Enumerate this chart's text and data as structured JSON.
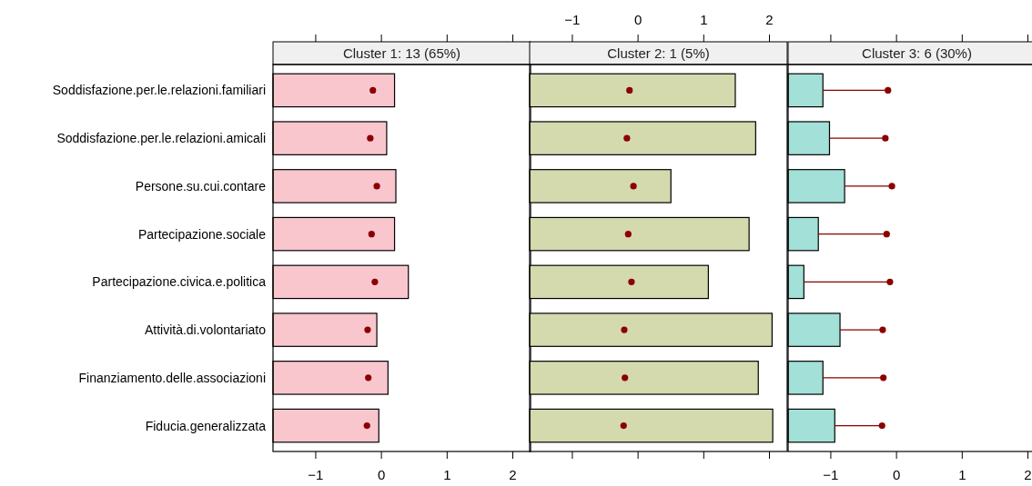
{
  "chart_data": [
    {
      "type": "bar",
      "orientation": "horizontal",
      "title": "Cluster 1: 13 (65%)",
      "categories": [
        "Soddisfazione.per.le.relazioni.familiari",
        "Soddisfazione.per.le.relazioni.amicali",
        "Persone.su.cui.contare",
        "Partecipazione.sociale",
        "Partecipazione.civica.e.politica",
        "Attività.di.volontariato",
        "Finanziamento.delle.associazioni",
        "Fiducia.generalizzata"
      ],
      "series": [
        {
          "color": "#f9c6ce",
          "base": [
            -1.65,
            -1.65,
            -1.65,
            -1.65,
            -1.65,
            -1.65,
            -1.65,
            -1.65
          ],
          "values": [
            1.85,
            1.73,
            1.87,
            1.85,
            2.06,
            1.58,
            1.75,
            1.61
          ]
        },
        {
          "type": "scatter",
          "color": "#8b0000",
          "x": [
            "Soddisfazione.per.le.relazioni.familiari",
            "Soddisfazione.per.le.relazioni.amicali",
            "Persone.su.cui.contare",
            "Partecipazione.sociale",
            "Partecipazione.civica.e.politica",
            "Attività.di.volontariato",
            "Finanziamento.delle.associazioni",
            "Fiducia.generalizzata"
          ],
          "values": [
            -0.13,
            -0.17,
            -0.07,
            -0.15,
            -0.1,
            -0.21,
            -0.2,
            -0.22
          ]
        }
      ],
      "xlim": [
        -1.65,
        2.27
      ],
      "xticks": [
        -1,
        0,
        1,
        2
      ],
      "marker": "circle"
    },
    {
      "type": "bar",
      "orientation": "horizontal",
      "title": "Cluster 2: 1 (5%)",
      "tick_labels": "x",
      "categories": [
        "Soddisfazione.per.le.relazioni.familiari",
        "Soddisfazione.per.le.relazioni.amicali",
        "Persone.su.cui.contare",
        "Partecipazione.sociale",
        "Partecipazione.civica.e.politica",
        "Attività.di.volontariato",
        "Finanziamento.delle.associazioni",
        "Fiducia.generalizzata"
      ],
      "series": [
        {
          "axis": "x2",
          "color": "#d5d9ae",
          "base": [
            -1.65,
            -1.65,
            -1.65,
            -1.65,
            -1.65,
            -1.65,
            -1.65,
            -1.65
          ],
          "values": [
            3.13,
            3.44,
            2.15,
            3.34,
            2.72,
            3.69,
            3.48,
            3.7
          ]
        },
        {
          "type": "scatter",
          "axis": "x2",
          "color": "#8b0000",
          "x": [
            "Soddisfazione.per.le.relazioni.familiari",
            "Soddisfazione.per.le.relazioni.amicali",
            "Persone.su.cui.contare",
            "Partecipazione.sociale",
            "Partecipazione.civica.e.politica",
            "Attività.di.volontariato",
            "Finanziamento.delle.associazioni",
            "Fiducia.generalizzata"
          ],
          "values": [
            -0.13,
            -0.17,
            -0.07,
            -0.15,
            -0.1,
            -0.21,
            -0.2,
            -0.22
          ]
        }
      ],
      "x2lim": [
        -1.65,
        2.27
      ],
      "x2ticks": [
        -1,
        0,
        1,
        2
      ],
      "marker": "circle"
    },
    {
      "type": "bar",
      "orientation": "horizontal",
      "title": "Cluster 3: 6 (30%)",
      "tick_labels": "x",
      "categories": [
        "Soddisfazione.per.le.relazioni.familiari",
        "Soddisfazione.per.le.relazioni.amicali",
        "Persone.su.cui.contare",
        "Partecipazione.sociale",
        "Partecipazione.civica.e.politica",
        "Attività.di.volontariato",
        "Finanziamento.delle.associazioni",
        "Fiducia.generalizzata"
      ],
      "series": [
        {
          "color": "#a3e0d7",
          "base": [
            -1.65,
            -1.65,
            -1.65,
            -1.65,
            -1.65,
            -1.65,
            -1.65,
            -1.65
          ],
          "values": [
            0.53,
            0.63,
            0.86,
            0.46,
            0.24,
            0.79,
            0.53,
            0.71
          ]
        },
        {
          "type": "scatter",
          "color": "#8b0000",
          "x": [
            "Soddisfazione.per.le.relazioni.familiari",
            "Soddisfazione.per.le.relazioni.amicali",
            "Persone.su.cui.contare",
            "Partecipazione.sociale",
            "Partecipazione.civica.e.politica",
            "Attività.di.volontariato",
            "Finanziamento.delle.associazioni",
            "Fiducia.generalizzata"
          ],
          "values": [
            -0.13,
            -0.17,
            -0.07,
            -0.15,
            -0.1,
            -0.21,
            -0.2,
            -0.22
          ],
          "errors": [
            [
              -1.12,
              -0.13
            ],
            [
              -1.02,
              -0.17
            ],
            [
              -0.79,
              -0.07
            ],
            [
              -1.19,
              -0.15
            ],
            [
              -1.41,
              -0.1
            ],
            [
              -0.86,
              -0.21
            ],
            [
              -1.12,
              -0.2
            ],
            [
              -0.94,
              -0.22
            ]
          ]
        }
      ],
      "xlim": [
        -1.65,
        2.27
      ],
      "xticks": [
        -1,
        0,
        1,
        2
      ],
      "marker": "circle"
    }
  ]
}
